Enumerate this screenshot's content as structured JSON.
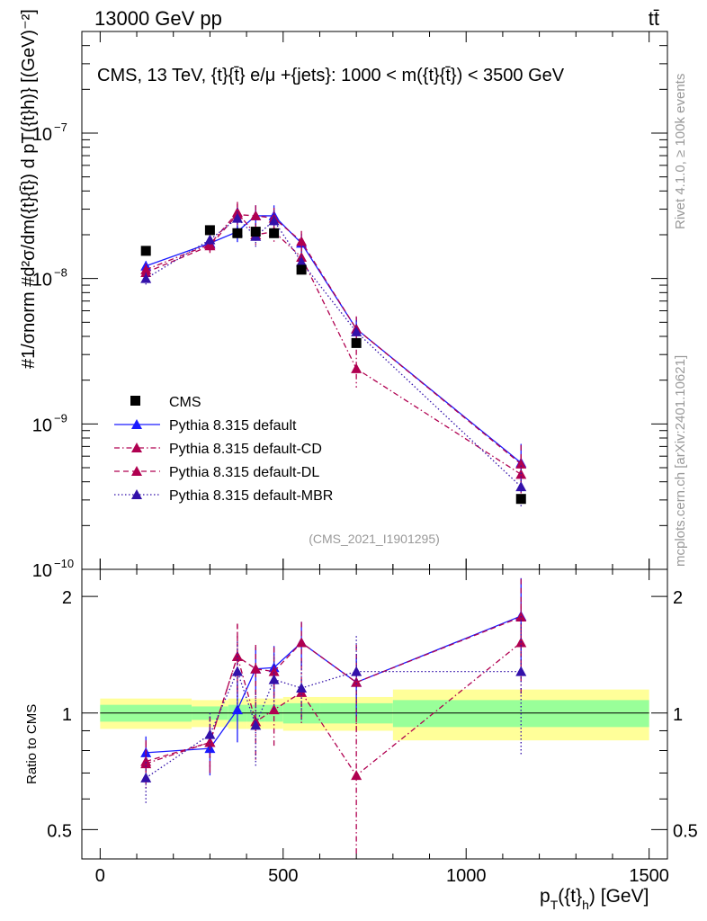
{
  "header": {
    "energy": "13000 GeV pp",
    "process": "tt̄"
  },
  "side": {
    "rivet": "Rivet 4.1.0, ≥ 100k events",
    "mcplots": "mcplots.cern.ch [arXiv:2401.10621]"
  },
  "chart_data": {
    "type": "scatter",
    "title": "CMS, 13 TeV, {t}{t̄} e/μ +{jets}: 1000 < m({t}{t̄}) < 3500 GeV",
    "analysis_id": "(CMS_2021_I1901295)",
    "xlabel_main": "p",
    "xlabel_sub": "T",
    "xlabel_rest": "({t}",
    "xlabel_sub2": "h",
    "xlabel_end": ") [GeV]",
    "ylabel": "#1/σnorm #d²σ/dm({t}{t̄}) d pT({t}h)} [(GeV)⁻²]",
    "ratio_ylabel": "Ratio to CMS",
    "xlim": [
      -50,
      1550
    ],
    "ylim": [
      1e-10,
      5e-07
    ],
    "ratio_ylim": [
      0.42,
      2.35
    ],
    "x_ticks": [
      0,
      500,
      1000,
      1500
    ],
    "x_tick_labels": [
      "0",
      "500",
      "1000",
      "1500"
    ],
    "y_ticks": [
      1e-10,
      1e-09,
      1e-08,
      1e-07
    ],
    "y_tick_labels": [
      "10",
      "10",
      "10",
      "10"
    ],
    "y_tick_exps": [
      "−10",
      "−9",
      "−8",
      "−7"
    ],
    "ratio_ticks": [
      0.5,
      1,
      2
    ],
    "ratio_tick_labels": [
      "0.5",
      "1",
      "2"
    ],
    "legend_position": "bottom-left",
    "bins": [
      [
        0,
        250
      ],
      [
        250,
        350
      ],
      [
        350,
        400
      ],
      [
        400,
        450
      ],
      [
        450,
        500
      ],
      [
        500,
        600
      ],
      [
        600,
        800
      ],
      [
        800,
        1500
      ]
    ],
    "x": [
      125,
      300,
      375,
      425,
      475,
      550,
      700,
      1150
    ],
    "data": {
      "name": "CMS",
      "values": [
        1.55e-08,
        2.15e-08,
        2.05e-08,
        2.1e-08,
        2.05e-08,
        1.15e-08,
        3.6e-09,
        3.05e-10
      ],
      "band_inner": [
        0.05,
        0.04,
        0.05,
        0.05,
        0.05,
        0.06,
        0.06,
        0.08
      ],
      "band_outer": [
        0.09,
        0.08,
        0.09,
        0.09,
        0.09,
        0.1,
        0.1,
        0.15
      ]
    },
    "series": [
      {
        "name": "Pythia 8.315 default",
        "color": "#1a1aff",
        "dash": "",
        "values": [
          1.22e-08,
          1.75e-08,
          2.1e-08,
          2.7e-08,
          2.7e-08,
          1.75e-08,
          4.5e-09,
          5.4e-10
        ],
        "errors": [
          0.08,
          0.12,
          0.18,
          0.18,
          0.18,
          0.16,
          0.2,
          0.35
        ],
        "ratio": [
          0.79,
          0.81,
          1.02,
          1.3,
          1.31,
          1.52,
          1.2,
          1.78
        ],
        "ratio_err": [
          0.08,
          0.12,
          0.18,
          0.18,
          0.18,
          0.2,
          0.22,
          0.45
        ]
      },
      {
        "name": "Pythia 8.315 default-CD",
        "color": "#b00050",
        "dash": "6,3,1.5,3",
        "values": [
          1.15e-08,
          1.72e-08,
          2.85e-08,
          2e-08,
          2.1e-08,
          1.4e-08,
          2.4e-09,
          4.5e-10
        ],
        "errors": [
          0.1,
          0.12,
          0.18,
          0.2,
          0.2,
          0.2,
          0.35,
          0.35
        ],
        "ratio": [
          0.74,
          0.84,
          1.4,
          0.95,
          1.02,
          1.13,
          0.69,
          1.52
        ],
        "ratio_err": [
          0.1,
          0.14,
          0.3,
          0.2,
          0.2,
          0.2,
          0.3,
          0.4
        ]
      },
      {
        "name": "Pythia 8.315 default-DL",
        "color": "#b00050",
        "dash": "6,4",
        "values": [
          1.1e-08,
          1.68e-08,
          2.75e-08,
          2.7e-08,
          2.6e-08,
          1.8e-08,
          4.5e-09,
          5.3e-10
        ],
        "errors": [
          0.1,
          0.12,
          0.18,
          0.18,
          0.18,
          0.18,
          0.22,
          0.35
        ],
        "ratio": [
          0.75,
          0.84,
          1.4,
          1.3,
          1.28,
          1.52,
          1.2,
          1.77
        ],
        "ratio_err": [
          0.1,
          0.14,
          0.3,
          0.2,
          0.2,
          0.2,
          0.3,
          0.45
        ]
      },
      {
        "name": "Pythia 8.315 default-MBR",
        "color": "#3311aa",
        "dash": "1.5,2.5",
        "values": [
          1e-08,
          1.85e-08,
          2.6e-08,
          1.95e-08,
          2.5e-08,
          1.3e-08,
          4.3e-09,
          3.7e-10
        ],
        "errors": [
          0.1,
          0.12,
          0.18,
          0.22,
          0.18,
          0.18,
          0.2,
          0.4
        ],
        "ratio": [
          0.68,
          0.88,
          1.28,
          0.93,
          1.22,
          1.16,
          1.28,
          1.28
        ],
        "ratio_err": [
          0.1,
          0.12,
          0.25,
          0.2,
          0.2,
          0.2,
          0.3,
          0.5
        ]
      }
    ]
  }
}
